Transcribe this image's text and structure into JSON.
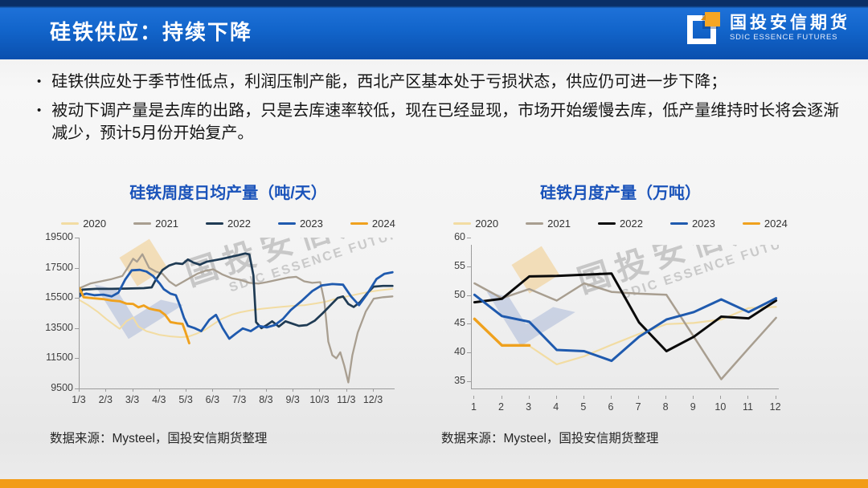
{
  "header": {
    "title": "硅铁供应：持续下降",
    "logo": {
      "cn": "国投安信期货",
      "en": "SDIC ESSENCE FUTURES"
    }
  },
  "bullets": [
    "硅铁供应处于季节性低点，利润压制产能，西北产区基本处于亏损状态，供应仍可进一步下降；",
    "被动下调产量是去库的出路，只是去库速率较低，现在已经显现，市场开始缓慢去库，低产量维持时长将会逐渐减少，预计5月份开始复产。"
  ],
  "watermark": {
    "cn": "国投安信期货",
    "en": "SDIC ESSENCE FUTURES"
  },
  "sources": {
    "left": "数据来源：Mysteel，国投安信期货整理",
    "right": "数据来源：Mysteel，国投安信期货整理"
  },
  "colors": {
    "header_blue": "#1265cb",
    "title_blue": "#1a53ba",
    "footer_orange": "#f29c17",
    "axis_gray": "#9c9c9c"
  },
  "chart_data": [
    {
      "type": "line",
      "title": "硅铁周度日均产量（吨/天）",
      "xlabel": "",
      "ylabel": "",
      "grid": false,
      "legend_position": "top",
      "ylim": [
        9500,
        19500
      ],
      "y_ticks": [
        9500,
        11500,
        13500,
        15500,
        17500,
        19500
      ],
      "xlim": [
        1,
        12.78
      ],
      "x_ticks": [
        "1/3",
        "2/3",
        "3/3",
        "4/3",
        "5/3",
        "6/3",
        "7/3",
        "8/3",
        "9/3",
        "10/3",
        "11/3",
        "12/3"
      ],
      "x_tick_positions": [
        1,
        2,
        3,
        4,
        5,
        6,
        7,
        8,
        9,
        10,
        11,
        12
      ],
      "series": [
        {
          "name": "2020",
          "color": "#f2dca2",
          "width": 2,
          "points": [
            [
              1,
              15350
            ],
            [
              1.3,
              15050
            ],
            [
              1.7,
              14550
            ],
            [
              2,
              14100
            ],
            [
              2.3,
              13700
            ],
            [
              2.5,
              13450
            ],
            [
              2.75,
              13950
            ],
            [
              3,
              14200
            ],
            [
              3.2,
              13600
            ],
            [
              3.5,
              13300
            ],
            [
              3.8,
              13150
            ],
            [
              4,
              13050
            ],
            [
              4.4,
              12950
            ],
            [
              4.8,
              12900
            ],
            [
              5.1,
              12950
            ],
            [
              5.4,
              13150
            ],
            [
              5.7,
              13400
            ],
            [
              6,
              13750
            ],
            [
              6.3,
              14100
            ],
            [
              6.7,
              14400
            ],
            [
              7,
              14550
            ],
            [
              7.4,
              14680
            ],
            [
              7.8,
              14780
            ],
            [
              8.2,
              14850
            ],
            [
              8.6,
              14920
            ],
            [
              9,
              14980
            ],
            [
              9.4,
              15020
            ],
            [
              9.8,
              15120
            ],
            [
              10.2,
              15250
            ],
            [
              10.6,
              15450
            ],
            [
              11,
              15600
            ],
            [
              11.4,
              15750
            ],
            [
              11.8,
              15900
            ],
            [
              12.2,
              16000
            ],
            [
              12.7,
              16100
            ]
          ]
        },
        {
          "name": "2021",
          "color": "#a89e90",
          "width": 2.3,
          "points": [
            [
              1,
              16150
            ],
            [
              1.4,
              16450
            ],
            [
              1.8,
              16600
            ],
            [
              2.2,
              16750
            ],
            [
              2.6,
              16950
            ],
            [
              2.8,
              17500
            ],
            [
              3,
              18100
            ],
            [
              3.15,
              17900
            ],
            [
              3.35,
              18400
            ],
            [
              3.6,
              17500
            ],
            [
              3.85,
              17250
            ],
            [
              4.1,
              17100
            ],
            [
              4.35,
              16600
            ],
            [
              4.6,
              16300
            ],
            [
              4.85,
              16550
            ],
            [
              5.1,
              16800
            ],
            [
              5.4,
              17100
            ],
            [
              5.7,
              17300
            ],
            [
              6,
              17400
            ],
            [
              6.35,
              17050
            ],
            [
              6.7,
              16800
            ],
            [
              7,
              16700
            ],
            [
              7.35,
              16500
            ],
            [
              7.7,
              16450
            ],
            [
              8,
              16550
            ],
            [
              8.4,
              16700
            ],
            [
              8.8,
              16850
            ],
            [
              9.1,
              16900
            ],
            [
              9.4,
              16600
            ],
            [
              9.7,
              16500
            ],
            [
              10,
              16550
            ],
            [
              10.15,
              15300
            ],
            [
              10.3,
              12600
            ],
            [
              10.45,
              11700
            ],
            [
              10.6,
              11500
            ],
            [
              10.75,
              11900
            ],
            [
              10.9,
              11000
            ],
            [
              11.05,
              9900
            ],
            [
              11.2,
              11700
            ],
            [
              11.4,
              13200
            ],
            [
              11.7,
              14600
            ],
            [
              12,
              15450
            ],
            [
              12.35,
              15550
            ],
            [
              12.7,
              15600
            ]
          ]
        },
        {
          "name": "2022",
          "color": "#1f3b54",
          "width": 2.7,
          "points": [
            [
              1,
              15600
            ],
            [
              1.1,
              16050
            ],
            [
              1.6,
              16100
            ],
            [
              2.2,
              16100
            ],
            [
              2.8,
              16120
            ],
            [
              3.4,
              16150
            ],
            [
              3.7,
              16200
            ],
            [
              3.85,
              16700
            ],
            [
              4.1,
              17350
            ],
            [
              4.35,
              17650
            ],
            [
              4.6,
              17800
            ],
            [
              4.85,
              17750
            ],
            [
              5.05,
              18050
            ],
            [
              5.25,
              17850
            ],
            [
              5.5,
              17700
            ],
            [
              5.75,
              17900
            ],
            [
              6,
              17980
            ],
            [
              6.3,
              18080
            ],
            [
              6.6,
              18200
            ],
            [
              6.9,
              18320
            ],
            [
              7.2,
              18450
            ],
            [
              7.35,
              18380
            ],
            [
              7.5,
              17000
            ],
            [
              7.6,
              13900
            ],
            [
              7.8,
              13500
            ],
            [
              8,
              13700
            ],
            [
              8.2,
              13950
            ],
            [
              8.45,
              13600
            ],
            [
              8.7,
              13950
            ],
            [
              8.95,
              13800
            ],
            [
              9.2,
              13650
            ],
            [
              9.5,
              13700
            ],
            [
              9.8,
              14000
            ],
            [
              10.1,
              14500
            ],
            [
              10.4,
              15050
            ],
            [
              10.65,
              15500
            ],
            [
              10.85,
              15600
            ],
            [
              11.05,
              15100
            ],
            [
              11.25,
              14900
            ],
            [
              11.5,
              15250
            ],
            [
              11.75,
              15800
            ],
            [
              12,
              16250
            ],
            [
              12.35,
              16300
            ],
            [
              12.7,
              16300
            ]
          ]
        },
        {
          "name": "2023",
          "color": "#1f5aae",
          "width": 2.8,
          "points": [
            [
              1,
              15650
            ],
            [
              1.25,
              15780
            ],
            [
              1.55,
              15680
            ],
            [
              1.9,
              15720
            ],
            [
              2.2,
              15600
            ],
            [
              2.45,
              15850
            ],
            [
              2.7,
              16700
            ],
            [
              2.95,
              17330
            ],
            [
              3.25,
              17360
            ],
            [
              3.5,
              17250
            ],
            [
              3.75,
              16950
            ],
            [
              4,
              16450
            ],
            [
              4.15,
              16080
            ],
            [
              4.4,
              15780
            ],
            [
              4.6,
              15680
            ],
            [
              4.75,
              15000
            ],
            [
              4.9,
              14200
            ],
            [
              5.05,
              13650
            ],
            [
              5.3,
              13500
            ],
            [
              5.55,
              13300
            ],
            [
              5.85,
              14050
            ],
            [
              6.1,
              14380
            ],
            [
              6.35,
              13500
            ],
            [
              6.6,
              12800
            ],
            [
              6.85,
              13150
            ],
            [
              7.1,
              13480
            ],
            [
              7.4,
              13300
            ],
            [
              7.7,
              13650
            ],
            [
              8,
              13550
            ],
            [
              8.3,
              13700
            ],
            [
              8.6,
              14100
            ],
            [
              8.9,
              14700
            ],
            [
              9.3,
              15300
            ],
            [
              9.7,
              15950
            ],
            [
              10.05,
              16330
            ],
            [
              10.45,
              16420
            ],
            [
              10.85,
              16380
            ],
            [
              11.15,
              15600
            ],
            [
              11.45,
              15020
            ],
            [
              11.75,
              15750
            ],
            [
              12.1,
              16750
            ],
            [
              12.4,
              17100
            ],
            [
              12.7,
              17200
            ]
          ]
        },
        {
          "name": "2024",
          "color": "#efa11e",
          "width": 2.9,
          "points": [
            [
              1,
              16150
            ],
            [
              1.15,
              15550
            ],
            [
              1.5,
              15480
            ],
            [
              1.9,
              15420
            ],
            [
              2.2,
              15330
            ],
            [
              2.5,
              15280
            ],
            [
              2.75,
              15120
            ],
            [
              3,
              15100
            ],
            [
              3.2,
              14880
            ],
            [
              3.4,
              15000
            ],
            [
              3.6,
              14800
            ],
            [
              3.8,
              14720
            ],
            [
              4,
              14650
            ],
            [
              4.2,
              14380
            ],
            [
              4.4,
              13900
            ],
            [
              4.65,
              13820
            ],
            [
              4.85,
              13780
            ],
            [
              4.95,
              13300
            ],
            [
              5.1,
              12500
            ]
          ]
        }
      ]
    },
    {
      "type": "line",
      "title": "硅铁月度产量（万吨）",
      "xlabel": "",
      "ylabel": "",
      "grid": false,
      "legend_position": "top",
      "ylim": [
        35,
        60
      ],
      "y_ticks": [
        35,
        40,
        45,
        50,
        55,
        60
      ],
      "xlim": [
        0.9,
        12.1
      ],
      "x_ticks": [
        "1",
        "2",
        "3",
        "4",
        "5",
        "6",
        "7",
        "8",
        "9",
        "10",
        "11",
        "12"
      ],
      "x_tick_positions": [
        1,
        2,
        3,
        4,
        5,
        6,
        7,
        8,
        9,
        10,
        11,
        12
      ],
      "series": [
        {
          "name": "2020",
          "color": "#f2dca2",
          "width": 2.2,
          "points": [
            [
              1,
              47.2
            ],
            [
              2,
              42.4
            ],
            [
              3,
              42.4
            ],
            [
              4,
              39.2
            ],
            [
              5,
              40.6
            ],
            [
              6,
              42.6
            ],
            [
              7,
              44.5
            ],
            [
              8,
              46.2
            ],
            [
              9,
              46.4
            ],
            [
              10,
              47.0
            ],
            [
              11,
              49.0
            ],
            [
              12,
              49.2
            ]
          ]
        },
        {
          "name": "2021",
          "color": "#a89e90",
          "width": 2.5,
          "points": [
            [
              1,
              53.3
            ],
            [
              2,
              50.7
            ],
            [
              3,
              52.3
            ],
            [
              4,
              50.3
            ],
            [
              5,
              53.3
            ],
            [
              6,
              51.8
            ],
            [
              7,
              51.5
            ],
            [
              8,
              51.3
            ],
            [
              9,
              44.0
            ],
            [
              10,
              36.6
            ],
            [
              11,
              42.0
            ],
            [
              12,
              47.3
            ]
          ]
        },
        {
          "name": "2022",
          "color": "#0a0a0a",
          "width": 3,
          "points": [
            [
              1,
              50.0
            ],
            [
              2,
              50.6
            ],
            [
              3,
              54.5
            ],
            [
              4,
              54.6
            ],
            [
              5,
              54.8
            ],
            [
              6,
              55.0
            ],
            [
              7,
              46.5
            ],
            [
              8,
              41.5
            ],
            [
              9,
              44.0
            ],
            [
              10,
              47.5
            ],
            [
              11,
              47.2
            ],
            [
              12,
              50.3
            ]
          ]
        },
        {
          "name": "2023",
          "color": "#1f5aae",
          "width": 3,
          "points": [
            [
              1,
              51.3
            ],
            [
              2,
              47.6
            ],
            [
              3,
              46.6
            ],
            [
              4,
              41.7
            ],
            [
              5,
              41.5
            ],
            [
              6,
              39.8
            ],
            [
              7,
              44.0
            ],
            [
              8,
              47.0
            ],
            [
              9,
              48.3
            ],
            [
              10,
              50.5
            ],
            [
              11,
              48.3
            ],
            [
              12,
              50.7
            ]
          ]
        },
        {
          "name": "2024",
          "color": "#efa11e",
          "width": 3.4,
          "points": [
            [
              1,
              47.1
            ],
            [
              2,
              42.5
            ],
            [
              3,
              42.5
            ]
          ]
        }
      ]
    }
  ]
}
